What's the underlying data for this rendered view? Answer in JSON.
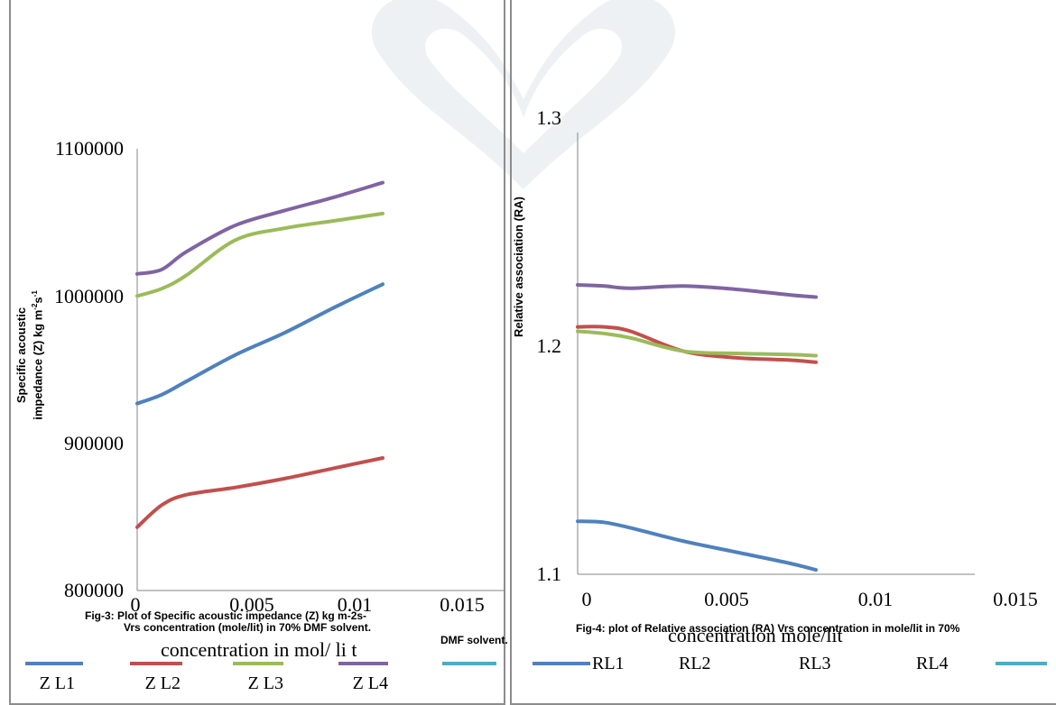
{
  "left_panel": {
    "caption_line1": "Fig-3: Plot of Specific acoustic impedance (Z) kg m-2s-",
    "caption_line2": "Vrs concentration (mole/lit) in 70% DMF solvent.",
    "xlabel": "concentration in mol/ li     t",
    "ylabel_line1": "Specific acoustic",
    "ylabel_line2": "impedance (Z) kg m",
    "ylabel_sup1": "-2",
    "ylabel_mid": "s",
    "ylabel_sup2": "-1"
  },
  "right_panel": {
    "caption_line1": "Fig-4: plot of Relative association (RA) Vrs concentration in mole/lit in 70%",
    "caption_line2": "DMF solvent.",
    "xlabel": "concentration mole/lit",
    "ylabel": "Relative association (RA)"
  },
  "chart_data": [
    {
      "type": "line",
      "title": "",
      "xlabel": "concentration in mol/ li     t",
      "ylabel": "Specific acoustic impedance (Z) kg m-2s-1",
      "xlim": [
        0,
        0.015
      ],
      "ylim": [
        800000,
        1100000
      ],
      "x_ticks": [
        "0",
        "0.005",
        "0.01",
        "0.015"
      ],
      "y_ticks": [
        "800000",
        "900000",
        "1000000",
        "1100000"
      ],
      "grid": false,
      "legend_position": "bottom",
      "series": [
        {
          "name": "Z L1",
          "color": "#4f81bd",
          "x": [
            0,
            0.001,
            0.002,
            0.004,
            0.006,
            0.008,
            0.01
          ],
          "y": [
            927000,
            933000,
            942000,
            960000,
            975000,
            992000,
            1008000
          ]
        },
        {
          "name": "Z L2",
          "color": "#c0504d",
          "x": [
            0,
            0.001,
            0.002,
            0.004,
            0.006,
            0.008,
            0.01
          ],
          "y": [
            843000,
            858000,
            865000,
            870000,
            876000,
            883000,
            890000
          ]
        },
        {
          "name": "Z L3",
          "color": "#9bbb59",
          "x": [
            0,
            0.001,
            0.002,
            0.004,
            0.006,
            0.008,
            0.01
          ],
          "y": [
            1000000,
            1005000,
            1014000,
            1038000,
            1046000,
            1051000,
            1056000
          ]
        },
        {
          "name": "Z L4",
          "color": "#8064a2",
          "x": [
            0,
            0.001,
            0.002,
            0.004,
            0.006,
            0.008,
            0.01
          ],
          "y": [
            1015000,
            1018000,
            1030000,
            1048000,
            1058000,
            1067000,
            1077000
          ]
        },
        {
          "name": "",
          "color": "#4bacc6",
          "x": [],
          "y": []
        }
      ]
    },
    {
      "type": "line",
      "title": "",
      "xlabel": "concentration mole/lit",
      "ylabel": "Relative association (RA)",
      "xlim": [
        0,
        0.015
      ],
      "ylim": [
        1.1,
        1.3
      ],
      "x_ticks": [
        "0",
        "0.005",
        "0.01",
        "0.015"
      ],
      "y_ticks": [
        "1.1",
        "1.2",
        "1.3"
      ],
      "grid": false,
      "legend_position": "bottom",
      "series": [
        {
          "name": "RL1",
          "color": "#4f81bd",
          "x": [
            0,
            0.001,
            0.002,
            0.004,
            0.006,
            0.008,
            0.009
          ],
          "y": [
            1.124,
            1.1235,
            1.121,
            1.115,
            1.11,
            1.105,
            1.102
          ]
        },
        {
          "name": "RL2",
          "color": "#c0504d",
          "x": [
            0,
            0.001,
            0.002,
            0.004,
            0.006,
            0.008,
            0.009
          ],
          "y": [
            1.212,
            1.212,
            1.21,
            1.201,
            1.198,
            1.197,
            1.196
          ]
        },
        {
          "name": "RL3",
          "color": "#9bbb59",
          "x": [
            0,
            0.001,
            0.002,
            0.004,
            0.006,
            0.008,
            0.009
          ],
          "y": [
            1.21,
            1.209,
            1.207,
            1.201,
            1.2,
            1.1995,
            1.199
          ]
        },
        {
          "name": "RL4",
          "color": "#8064a2",
          "x": [
            0,
            0.001,
            0.002,
            0.004,
            0.006,
            0.008,
            0.009
          ],
          "y": [
            1.231,
            1.2305,
            1.2295,
            1.2305,
            1.229,
            1.2265,
            1.2255
          ]
        },
        {
          "name": "",
          "color": "#4bacc6",
          "x": [],
          "y": []
        }
      ]
    }
  ]
}
